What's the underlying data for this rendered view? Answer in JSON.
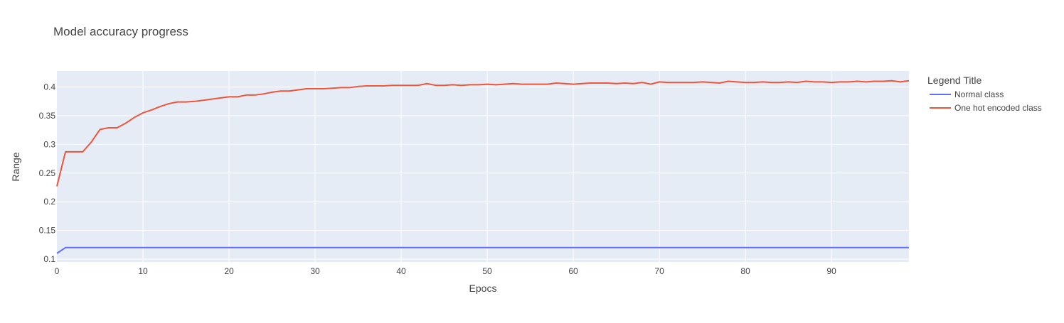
{
  "chart_data": {
    "type": "line",
    "title": "Model accuracy progress",
    "xlabel": "Epocs",
    "ylabel": "Range",
    "xlim": [
      0,
      99
    ],
    "ylim": [
      0.095,
      0.428
    ],
    "xticks": [
      0,
      10,
      20,
      30,
      40,
      50,
      60,
      70,
      80,
      90
    ],
    "yticks": [
      0.1,
      0.15,
      0.2,
      0.25,
      0.3,
      0.35,
      0.4
    ],
    "grid": true,
    "plot_background": "#E5ECF6",
    "legend": {
      "title": "Legend Title",
      "position": "right"
    },
    "x": [
      0,
      1,
      2,
      3,
      4,
      5,
      6,
      7,
      8,
      9,
      10,
      11,
      12,
      13,
      14,
      15,
      16,
      17,
      18,
      19,
      20,
      21,
      22,
      23,
      24,
      25,
      26,
      27,
      28,
      29,
      30,
      31,
      32,
      33,
      34,
      35,
      36,
      37,
      38,
      39,
      40,
      41,
      42,
      43,
      44,
      45,
      46,
      47,
      48,
      49,
      50,
      51,
      52,
      53,
      54,
      55,
      56,
      57,
      58,
      59,
      60,
      61,
      62,
      63,
      64,
      65,
      66,
      67,
      68,
      69,
      70,
      71,
      72,
      73,
      74,
      75,
      76,
      77,
      78,
      79,
      80,
      81,
      82,
      83,
      84,
      85,
      86,
      87,
      88,
      89,
      90,
      91,
      92,
      93,
      94,
      95,
      96,
      97,
      98,
      99
    ],
    "series": [
      {
        "name": "Normal class",
        "color": "#636EFA",
        "values": [
          0.11,
          0.12,
          0.12,
          0.12,
          0.12,
          0.12,
          0.12,
          0.12,
          0.12,
          0.12,
          0.12,
          0.12,
          0.12,
          0.12,
          0.12,
          0.12,
          0.12,
          0.12,
          0.12,
          0.12,
          0.12,
          0.12,
          0.12,
          0.12,
          0.12,
          0.12,
          0.12,
          0.12,
          0.12,
          0.12,
          0.12,
          0.12,
          0.12,
          0.12,
          0.12,
          0.12,
          0.12,
          0.12,
          0.12,
          0.12,
          0.12,
          0.12,
          0.12,
          0.12,
          0.12,
          0.12,
          0.12,
          0.12,
          0.12,
          0.12,
          0.12,
          0.12,
          0.12,
          0.12,
          0.12,
          0.12,
          0.12,
          0.12,
          0.12,
          0.12,
          0.12,
          0.12,
          0.12,
          0.12,
          0.12,
          0.12,
          0.12,
          0.12,
          0.12,
          0.12,
          0.12,
          0.12,
          0.12,
          0.12,
          0.12,
          0.12,
          0.12,
          0.12,
          0.12,
          0.12,
          0.12,
          0.12,
          0.12,
          0.12,
          0.12,
          0.12,
          0.12,
          0.12,
          0.12,
          0.12,
          0.12,
          0.12,
          0.12,
          0.12,
          0.12,
          0.12,
          0.12,
          0.12,
          0.12,
          0.12
        ]
      },
      {
        "name": "One hot encoded class",
        "color": "#EF553B",
        "values": [
          0.227,
          0.287,
          0.287,
          0.287,
          0.304,
          0.326,
          0.329,
          0.329,
          0.337,
          0.347,
          0.355,
          0.36,
          0.366,
          0.371,
          0.374,
          0.374,
          0.375,
          0.377,
          0.379,
          0.381,
          0.383,
          0.383,
          0.386,
          0.386,
          0.388,
          0.391,
          0.393,
          0.393,
          0.395,
          0.397,
          0.397,
          0.397,
          0.398,
          0.399,
          0.399,
          0.401,
          0.402,
          0.402,
          0.402,
          0.403,
          0.403,
          0.403,
          0.403,
          0.406,
          0.403,
          0.403,
          0.404,
          0.403,
          0.404,
          0.404,
          0.405,
          0.404,
          0.405,
          0.406,
          0.405,
          0.405,
          0.405,
          0.405,
          0.407,
          0.406,
          0.405,
          0.406,
          0.407,
          0.407,
          0.407,
          0.406,
          0.407,
          0.406,
          0.408,
          0.405,
          0.409,
          0.408,
          0.408,
          0.408,
          0.408,
          0.409,
          0.408,
          0.407,
          0.41,
          0.409,
          0.408,
          0.408,
          0.409,
          0.408,
          0.408,
          0.409,
          0.408,
          0.41,
          0.409,
          0.409,
          0.408,
          0.409,
          0.409,
          0.41,
          0.409,
          0.41,
          0.41,
          0.411,
          0.409,
          0.411
        ]
      }
    ]
  }
}
